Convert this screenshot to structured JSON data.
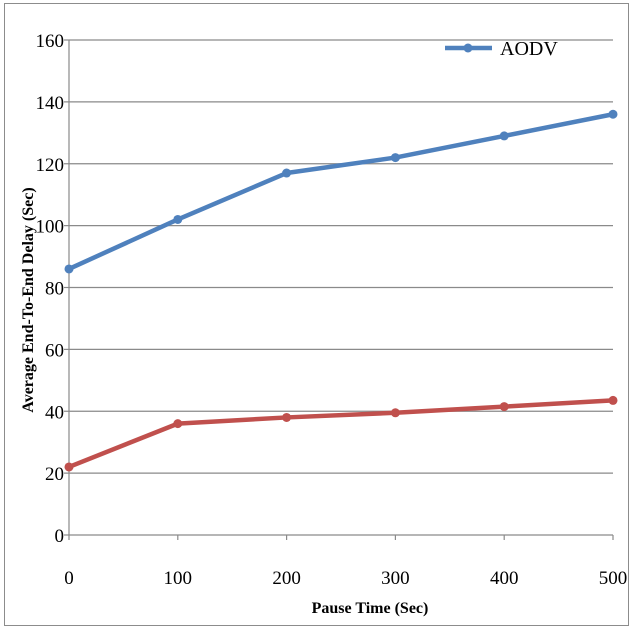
{
  "chart_data": {
    "type": "line",
    "title": "",
    "xlabel": "Pause Time (Sec)",
    "ylabel": "Average End-To-End Delay (Sec)",
    "x": [
      0,
      100,
      200,
      300,
      400,
      500
    ],
    "xlim": [
      0,
      500
    ],
    "ylim": [
      0,
      160
    ],
    "x_ticks": [
      "0",
      "100",
      "200",
      "300",
      "400",
      "500"
    ],
    "y_ticks": [
      "0",
      "20",
      "40",
      "60",
      "80",
      "100",
      "120",
      "140",
      "160"
    ],
    "grid": true,
    "legend_position": "top-right",
    "series": [
      {
        "name": "AODV",
        "color": "#4f81bd",
        "values": [
          86,
          102,
          117,
          122,
          129,
          136
        ]
      },
      {
        "color": "#c0504d",
        "values": [
          22,
          36,
          38,
          39.5,
          41.5,
          43.5
        ]
      }
    ]
  }
}
